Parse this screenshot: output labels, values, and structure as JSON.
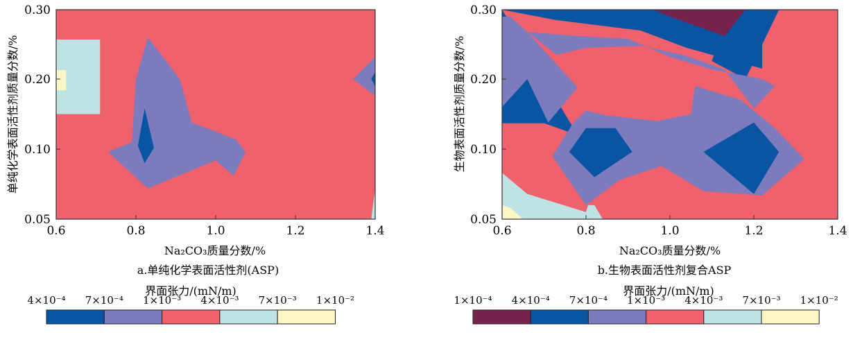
{
  "colors": {
    "c1e-4": "#76214e",
    "c4e-4": "#0a54a4",
    "c7e-4": "#7b7bbd",
    "c1e-3": "#ee616d",
    "c4e-3": "#bfe2e5",
    "c7e-3": "#fbf6c4"
  },
  "chart_data": [
    {
      "type": "contour",
      "caption": "a.单纯化学表面活性剂(ASP)",
      "xlabel": "Na₂CO₃质量分数/%",
      "ylabel": "单纯化学表面活性剂质量分数/%",
      "xticks": [
        "0.6",
        "0.8",
        "1.0",
        "1.2",
        "1.4"
      ],
      "yticks": [
        "0.05",
        "0.10",
        "0.20",
        "0.30"
      ],
      "xlim": [
        0.6,
        1.4
      ],
      "ylim": [
        0.05,
        0.3
      ],
      "colorbar_title": "界面张力/(mN/m)",
      "colorbar_levels": [
        "4×10⁻⁴",
        "7×10⁻⁴",
        "1×10⁻³",
        "4×10⁻³",
        "7×10⁻³",
        "1×10⁻²"
      ],
      "colorbar_colors": [
        "c4e-4",
        "c7e-4",
        "c1e-3",
        "c4e-3",
        "c7e-3"
      ],
      "background": "c1e-3",
      "regions": [
        {
          "color": "c4e-3",
          "points": [
            [
              0.6,
              0.15
            ],
            [
              0.71,
              0.15
            ],
            [
              0.71,
              0.257
            ],
            [
              0.6,
              0.257
            ]
          ]
        },
        {
          "color": "c7e-3",
          "points": [
            [
              0.6,
              0.184
            ],
            [
              0.625,
              0.184
            ],
            [
              0.625,
              0.213
            ],
            [
              0.6,
              0.213
            ]
          ]
        },
        {
          "color": "c7e-4",
          "points": [
            [
              0.73,
              0.098
            ],
            [
              0.79,
              0.11
            ],
            [
              0.8,
              0.2
            ],
            [
              0.83,
              0.26
            ],
            [
              0.91,
              0.2
            ],
            [
              0.94,
              0.138
            ],
            [
              1.05,
              0.114
            ],
            [
              1.075,
              0.098
            ],
            [
              1.045,
              0.081
            ],
            [
              1.0,
              0.092
            ],
            [
              0.83,
              0.072
            ]
          ]
        },
        {
          "color": "c4e-4",
          "points": [
            [
              0.805,
              0.105
            ],
            [
              0.822,
              0.158
            ],
            [
              0.845,
              0.102
            ],
            [
              0.822,
              0.09
            ]
          ]
        },
        {
          "color": "c7e-4",
          "points": [
            [
              1.345,
              0.2
            ],
            [
              1.4,
              0.232
            ],
            [
              1.4,
              0.176
            ]
          ]
        },
        {
          "color": "c4e-4",
          "points": [
            [
              1.39,
              0.2
            ],
            [
              1.4,
              0.21
            ],
            [
              1.4,
              0.19
            ]
          ]
        },
        {
          "color": "c4e-3",
          "points": [
            [
              1.39,
              0.05
            ],
            [
              1.4,
              0.05
            ],
            [
              1.4,
              0.072
            ]
          ]
        }
      ]
    },
    {
      "type": "contour",
      "caption": "b.生物表面活性剂复合ASP",
      "xlabel": "Na₂CO₃质量分数/%",
      "ylabel": "生物表面活性剂质量分数/%",
      "xticks": [
        "0.6",
        "0.8",
        "1.0",
        "1.2",
        "1.4"
      ],
      "yticks": [
        "0.05",
        "0.10",
        "0.20",
        "0.30"
      ],
      "xlim": [
        0.6,
        1.4
      ],
      "ylim": [
        0.05,
        0.3
      ],
      "colorbar_title": "界面张力/(mN/m)",
      "colorbar_levels": [
        "1×10⁻⁴",
        "4×10⁻⁴",
        "7×10⁻⁴",
        "1×10⁻³",
        "4×10⁻³",
        "7×10⁻³",
        "1×10⁻²"
      ],
      "colorbar_colors": [
        "c1e-4",
        "c4e-4",
        "c7e-4",
        "c1e-3",
        "c4e-3",
        "c7e-3"
      ],
      "background": "c1e-3",
      "regions": [
        {
          "color": "c4e-4",
          "points": [
            [
              0.6,
              0.3
            ],
            [
              1.22,
              0.3
            ],
            [
              1.22,
              0.215
            ],
            [
              1.04,
              0.245
            ],
            [
              0.93,
              0.27
            ],
            [
              0.73,
              0.285
            ],
            [
              0.6,
              0.3
            ]
          ]
        },
        {
          "color": "c4e-4",
          "points": [
            [
              0.6,
              0.3
            ],
            [
              0.6,
              0.137
            ],
            [
              0.7,
              0.137
            ],
            [
              0.78,
              0.12
            ],
            [
              0.6,
              0.3
            ]
          ]
        },
        {
          "color": "c4e-4",
          "points": [
            [
              1.14,
              0.3
            ],
            [
              1.26,
              0.3
            ],
            [
              1.18,
              0.2
            ],
            [
              1.1,
              0.226
            ]
          ]
        },
        {
          "color": "c1e-4",
          "points": [
            [
              0.96,
              0.3
            ],
            [
              1.18,
              0.3
            ],
            [
              1.13,
              0.262
            ],
            [
              1.0,
              0.29
            ]
          ]
        },
        {
          "color": "c7e-4",
          "points": [
            [
              0.62,
              0.29
            ],
            [
              0.66,
              0.268
            ],
            [
              0.78,
              0.188
            ],
            [
              0.71,
              0.138
            ],
            [
              0.66,
              0.2
            ],
            [
              0.6,
              0.16
            ],
            [
              0.6,
              0.29
            ]
          ]
        },
        {
          "color": "c7e-4",
          "points": [
            [
              0.66,
              0.268
            ],
            [
              0.78,
              0.262
            ],
            [
              0.9,
              0.258
            ],
            [
              1.0,
              0.232
            ],
            [
              1.1,
              0.214
            ],
            [
              1.22,
              0.2
            ],
            [
              1.25,
              0.19
            ],
            [
              1.2,
              0.158
            ],
            [
              1.13,
              0.214
            ],
            [
              1.03,
              0.235
            ],
            [
              0.93,
              0.248
            ],
            [
              0.8,
              0.245
            ],
            [
              0.73,
              0.235
            ]
          ]
        },
        {
          "color": "c7e-4",
          "points": [
            [
              0.72,
              0.095
            ],
            [
              0.8,
              0.06
            ],
            [
              0.88,
              0.078
            ],
            [
              0.98,
              0.088
            ],
            [
              1.08,
              0.07
            ],
            [
              1.22,
              0.067
            ],
            [
              1.32,
              0.093
            ],
            [
              1.25,
              0.13
            ],
            [
              1.17,
              0.17
            ],
            [
              1.06,
              0.19
            ],
            [
              1.05,
              0.15
            ],
            [
              0.97,
              0.14
            ],
            [
              0.85,
              0.148
            ],
            [
              0.8,
              0.155
            ],
            [
              0.77,
              0.138
            ],
            [
              0.72,
              0.095
            ]
          ]
        },
        {
          "color": "c4e-4",
          "points": [
            [
              0.76,
              0.098
            ],
            [
              0.8,
              0.13
            ],
            [
              0.87,
              0.13
            ],
            [
              0.91,
              0.098
            ],
            [
              0.82,
              0.08
            ]
          ]
        },
        {
          "color": "c4e-4",
          "points": [
            [
              1.08,
              0.098
            ],
            [
              1.2,
              0.138
            ],
            [
              1.26,
              0.098
            ],
            [
              1.2,
              0.068
            ]
          ]
        },
        {
          "color": "c4e-3",
          "points": [
            [
              0.6,
              0.083
            ],
            [
              0.66,
              0.068
            ],
            [
              0.8,
              0.055
            ],
            [
              0.805,
              0.06
            ],
            [
              0.82,
              0.06
            ],
            [
              0.84,
              0.05
            ],
            [
              0.6,
              0.05
            ]
          ]
        },
        {
          "color": "c7e-3",
          "points": [
            [
              0.6,
              0.06
            ],
            [
              0.62,
              0.058
            ],
            [
              0.65,
              0.05
            ],
            [
              0.6,
              0.05
            ]
          ]
        }
      ]
    }
  ]
}
